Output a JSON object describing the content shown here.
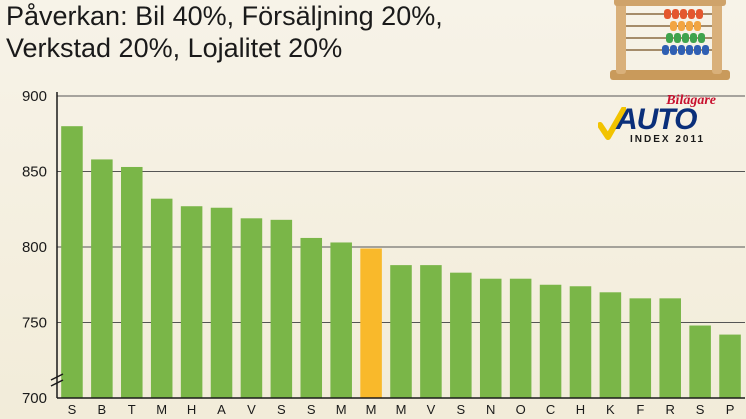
{
  "title_lines": [
    "Påverkan: Bil 40%, Försäljning 20%,",
    "Verkstad 20%, Lojalitet 20%"
  ],
  "logo": {
    "brand_top": "Bilägare",
    "brand_main": "AUTO",
    "brand_sub": "INDEX 2011"
  },
  "colors": {
    "bar": "#7ab648",
    "highlight": "#f9b92b",
    "axis": "#1a1a1a",
    "grid": "#555555"
  },
  "chart_data": {
    "type": "bar",
    "categories": [
      "S",
      "B",
      "T",
      "M",
      "H",
      "A",
      "V",
      "S",
      "S",
      "M",
      "M",
      "M",
      "V",
      "S",
      "N",
      "O",
      "C",
      "H",
      "K",
      "F",
      "R",
      "S",
      "P"
    ],
    "values": [
      880,
      858,
      853,
      832,
      827,
      826,
      819,
      818,
      806,
      803,
      799,
      788,
      788,
      783,
      779,
      779,
      775,
      774,
      770,
      766,
      766,
      748,
      742
    ],
    "highlight_index": 10,
    "y_ticks": [
      "700",
      "750",
      "800",
      "850",
      "900"
    ],
    "ylim": [
      700,
      900
    ],
    "grid": true,
    "axis_break": true
  }
}
